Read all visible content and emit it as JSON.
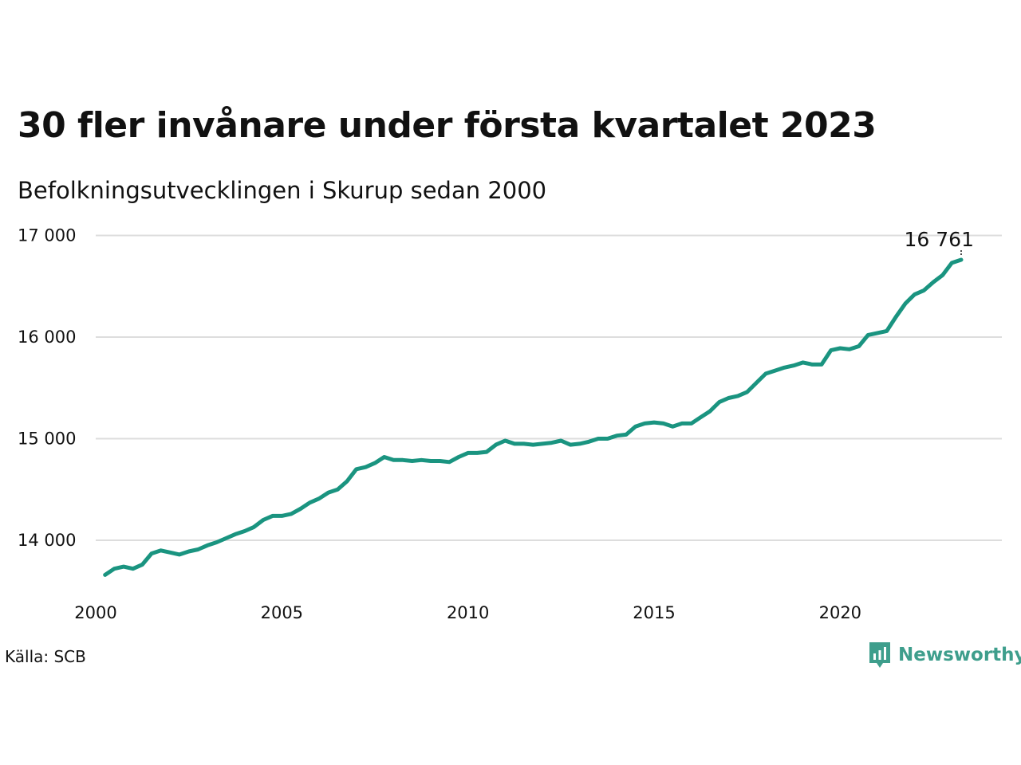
{
  "header": {
    "title": "30 fler invånare under första kvartalet 2023",
    "subtitle": "Befolkningsutvecklingen i Skurup sedan 2000"
  },
  "footer": {
    "source": "Källa: SCB",
    "brand": "Newsworthy",
    "brand_icon": "newsworthy-logo-icon"
  },
  "colors": {
    "line": "#1a9480",
    "grid": "#dddddd",
    "brand": "#3e9e8c"
  },
  "chart_data": {
    "type": "line",
    "title": "30 fler invånare under första kvartalet 2023",
    "subtitle": "Befolkningsutvecklingen i Skurup sedan 2000",
    "xlabel": "",
    "ylabel": "",
    "xlim": [
      2000,
      2024
    ],
    "ylim": [
      13500,
      17000
    ],
    "x_ticks": [
      2000,
      2005,
      2010,
      2015,
      2020
    ],
    "x_tick_labels": [
      "2000",
      "2005",
      "2010",
      "2015",
      "2020"
    ],
    "y_ticks": [
      14000,
      15000,
      16000,
      17000
    ],
    "y_tick_labels": [
      "14 000",
      "15 000",
      "16 000",
      "17 000"
    ],
    "grid": "horizontal",
    "end_label": "16 761",
    "series": [
      {
        "name": "",
        "x": [
          2000.25,
          2000.5,
          2000.75,
          2001.0,
          2001.25,
          2001.5,
          2001.75,
          2002.0,
          2002.25,
          2002.5,
          2002.75,
          2003.0,
          2003.25,
          2003.5,
          2003.75,
          2004.0,
          2004.25,
          2004.5,
          2004.75,
          2005.0,
          2005.25,
          2005.5,
          2005.75,
          2006.0,
          2006.25,
          2006.5,
          2006.75,
          2007.0,
          2007.25,
          2007.5,
          2007.75,
          2008.0,
          2008.25,
          2008.5,
          2008.75,
          2009.0,
          2009.25,
          2009.5,
          2009.75,
          2010.0,
          2010.25,
          2010.5,
          2010.75,
          2011.0,
          2011.25,
          2011.5,
          2011.75,
          2012.0,
          2012.25,
          2012.5,
          2012.75,
          2013.0,
          2013.25,
          2013.5,
          2013.75,
          2014.0,
          2014.25,
          2014.5,
          2014.75,
          2015.0,
          2015.25,
          2015.5,
          2015.75,
          2016.0,
          2016.25,
          2016.5,
          2016.75,
          2017.0,
          2017.25,
          2017.5,
          2017.75,
          2018.0,
          2018.25,
          2018.5,
          2018.75,
          2019.0,
          2019.25,
          2019.5,
          2019.75,
          2020.0,
          2020.25,
          2020.5,
          2020.75,
          2021.0,
          2021.25,
          2021.5,
          2021.75,
          2022.0,
          2022.25,
          2022.5,
          2022.75,
          2023.0,
          2023.25
        ],
        "values": [
          13660,
          13720,
          13740,
          13720,
          13760,
          13870,
          13900,
          13880,
          13860,
          13890,
          13910,
          13950,
          13980,
          14020,
          14060,
          14090,
          14130,
          14200,
          14240,
          14240,
          14260,
          14310,
          14370,
          14410,
          14470,
          14500,
          14580,
          14700,
          14720,
          14760,
          14820,
          14790,
          14790,
          14780,
          14790,
          14780,
          14780,
          14770,
          14820,
          14860,
          14860,
          14870,
          14940,
          14980,
          14950,
          14950,
          14940,
          14950,
          14960,
          14980,
          14940,
          14950,
          14970,
          15000,
          15000,
          15030,
          15040,
          15120,
          15150,
          15160,
          15150,
          15120,
          15150,
          15150,
          15210,
          15270,
          15360,
          15400,
          15420,
          15460,
          15550,
          15640,
          15670,
          15700,
          15720,
          15750,
          15730,
          15730,
          15870,
          15890,
          15880,
          15910,
          16020,
          16040,
          16060,
          16200,
          16330,
          16420,
          16460,
          16540,
          16610,
          16730,
          16761
        ]
      }
    ]
  }
}
